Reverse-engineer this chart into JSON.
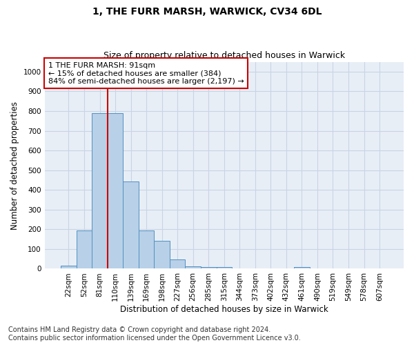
{
  "title": "1, THE FURR MARSH, WARWICK, CV34 6DL",
  "subtitle": "Size of property relative to detached houses in Warwick",
  "xlabel": "Distribution of detached houses by size in Warwick",
  "ylabel": "Number of detached properties",
  "bar_labels": [
    "22sqm",
    "52sqm",
    "81sqm",
    "110sqm",
    "139sqm",
    "169sqm",
    "198sqm",
    "227sqm",
    "256sqm",
    "285sqm",
    "315sqm",
    "344sqm",
    "373sqm",
    "402sqm",
    "432sqm",
    "461sqm",
    "490sqm",
    "519sqm",
    "549sqm",
    "578sqm",
    "607sqm"
  ],
  "bar_values": [
    15,
    195,
    790,
    790,
    443,
    195,
    140,
    47,
    13,
    10,
    10,
    0,
    0,
    0,
    0,
    10,
    0,
    0,
    0,
    0,
    0
  ],
  "bar_color": "#b8d0e8",
  "bar_edge_color": "#5090c0",
  "grid_color": "#c8d4e4",
  "background_color": "#e8eef6",
  "vline_color": "#cc0000",
  "annotation_text": "1 THE FURR MARSH: 91sqm\n← 15% of detached houses are smaller (384)\n84% of semi-detached houses are larger (2,197) →",
  "annotation_box_color": "#cc0000",
  "ylim": [
    0,
    1050
  ],
  "yticks": [
    0,
    100,
    200,
    300,
    400,
    500,
    600,
    700,
    800,
    900,
    1000
  ],
  "footnote": "Contains HM Land Registry data © Crown copyright and database right 2024.\nContains public sector information licensed under the Open Government Licence v3.0.",
  "title_fontsize": 10,
  "subtitle_fontsize": 9,
  "axis_label_fontsize": 8.5,
  "tick_fontsize": 7.5,
  "annotation_fontsize": 8,
  "footnote_fontsize": 7
}
